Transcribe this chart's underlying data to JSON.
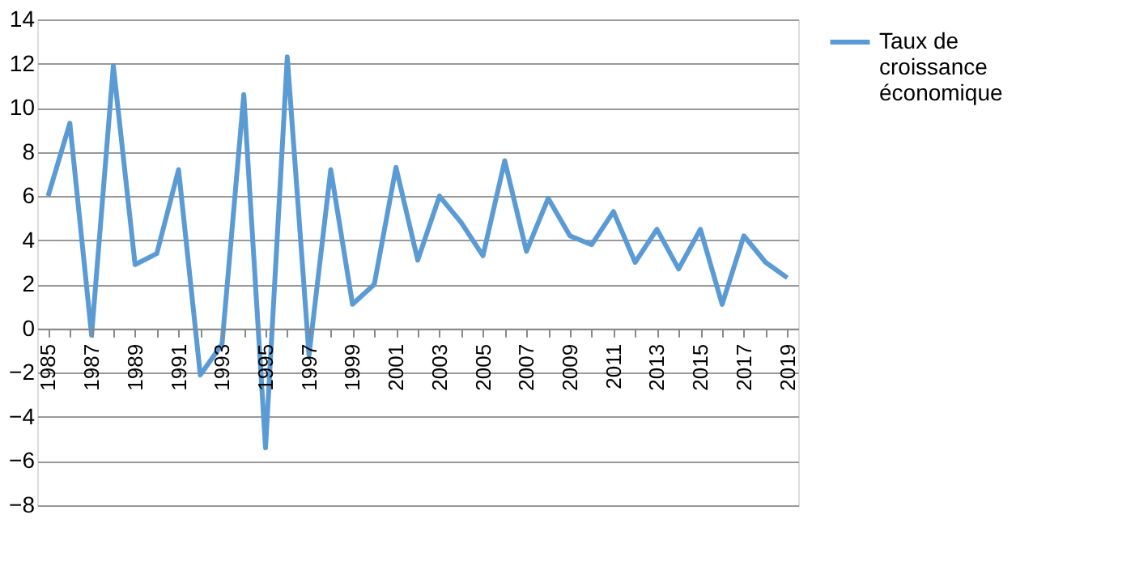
{
  "chart_data": {
    "type": "line",
    "categories": [
      "1985",
      null,
      "1987",
      null,
      "1989",
      null,
      "1991",
      null,
      "1993",
      null,
      "1995",
      null,
      "1997",
      null,
      "1999",
      null,
      "2001",
      null,
      "2003",
      null,
      "2005",
      null,
      "2007",
      null,
      "2009",
      null,
      "2011",
      null,
      "2013",
      null,
      "2015",
      null,
      "2017",
      null,
      "2019"
    ],
    "series": [
      {
        "name": "Taux de croissance économique",
        "color": "#5b9bd5",
        "values": [
          6.0,
          9.3,
          -0.3,
          11.9,
          2.9,
          3.4,
          7.2,
          -2.1,
          -0.7,
          10.6,
          -5.4,
          12.3,
          -1.2,
          7.2,
          1.1,
          2.0,
          7.3,
          3.1,
          6.0,
          4.8,
          3.3,
          7.6,
          3.5,
          5.9,
          4.2,
          3.8,
          5.3,
          3.0,
          4.5,
          2.7,
          4.5,
          1.1,
          4.2,
          3.0,
          2.3
        ]
      }
    ],
    "ylim": [
      -8,
      14
    ],
    "yticks": [
      -8,
      -6,
      -4,
      -2,
      0,
      2,
      4,
      6,
      8,
      10,
      12,
      14
    ],
    "grid": "y",
    "legend": "right",
    "marker": "none",
    "line_style": "solid"
  }
}
